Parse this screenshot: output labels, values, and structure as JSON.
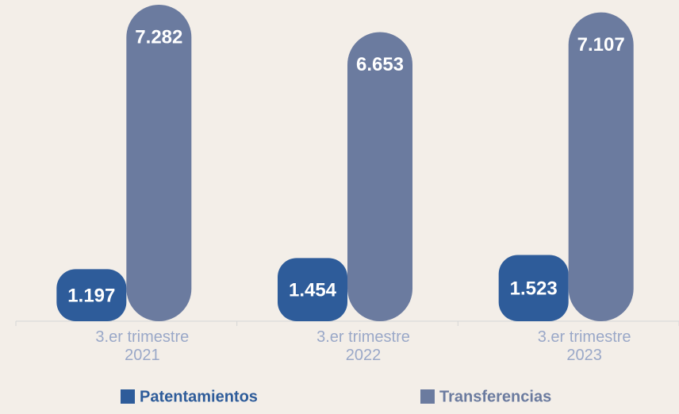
{
  "chart_data": {
    "type": "bar",
    "categories": [
      "3.er trimestre 2021",
      "3.er trimestre 2022",
      "3.er trimestre 2023"
    ],
    "series": [
      {
        "name": "Patentamientos",
        "color": "#2e5c9a",
        "values": [
          1197,
          1454,
          1523
        ],
        "value_labels": [
          "1.197",
          "1.454",
          "1.523"
        ]
      },
      {
        "name": "Transferencias",
        "color": "#6b7b9f",
        "values": [
          7282,
          6653,
          7107
        ],
        "value_labels": [
          "7.282",
          "6.653",
          "7.107"
        ]
      }
    ],
    "ylim": [
      0,
      7300
    ],
    "legend": "bottom"
  }
}
